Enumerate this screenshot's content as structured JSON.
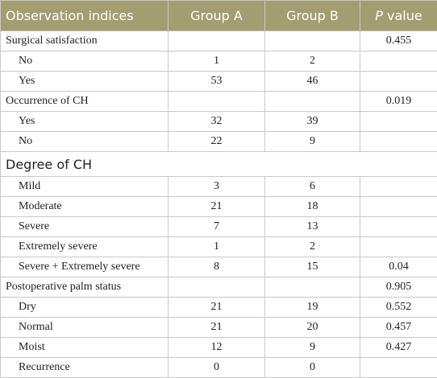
{
  "header": {
    "columns": [
      "Observation indices",
      "Group A",
      "Group B"
    ],
    "p_symbol": "P",
    "p_label": "value"
  },
  "sections": [
    {
      "title": "Surgical satisfaction",
      "p_value": 0.455,
      "rows": [
        {
          "label": "No",
          "group_a": 1,
          "group_b": 2
        },
        {
          "label": "Yes",
          "group_a": 53,
          "group_b": 46
        }
      ]
    },
    {
      "title": "Occurrence of CH",
      "p_value": 0.019,
      "rows": [
        {
          "label": "Yes",
          "group_a": 32,
          "group_b": 39
        },
        {
          "label": "No",
          "group_a": 22,
          "group_b": 9
        }
      ]
    },
    {
      "title": "Degree of CH",
      "rows": [
        {
          "label": "Mild",
          "group_a": 3,
          "group_b": 6
        },
        {
          "label": "Moderate",
          "group_a": 21,
          "group_b": 18
        },
        {
          "label": "Severe",
          "group_a": 7,
          "group_b": 13
        },
        {
          "label": "Extremely severe",
          "group_a": 1,
          "group_b": 2
        },
        {
          "label": "Severe + Extremely severe",
          "group_a": 8,
          "group_b": 15,
          "p_value": 0.04
        }
      ]
    },
    {
      "title": "Postoperative palm status",
      "p_value": 0.905,
      "rows": [
        {
          "label": "Dry",
          "group_a": 21,
          "group_b": 19,
          "p_value": 0.552
        },
        {
          "label": "Normal",
          "group_a": 21,
          "group_b": 20,
          "p_value": 0.457
        },
        {
          "label": "Moist",
          "group_a": 12,
          "group_b": 9,
          "p_value": 0.427
        },
        {
          "label": "Recurrence",
          "group_a": 0,
          "group_b": 0
        }
      ]
    }
  ]
}
